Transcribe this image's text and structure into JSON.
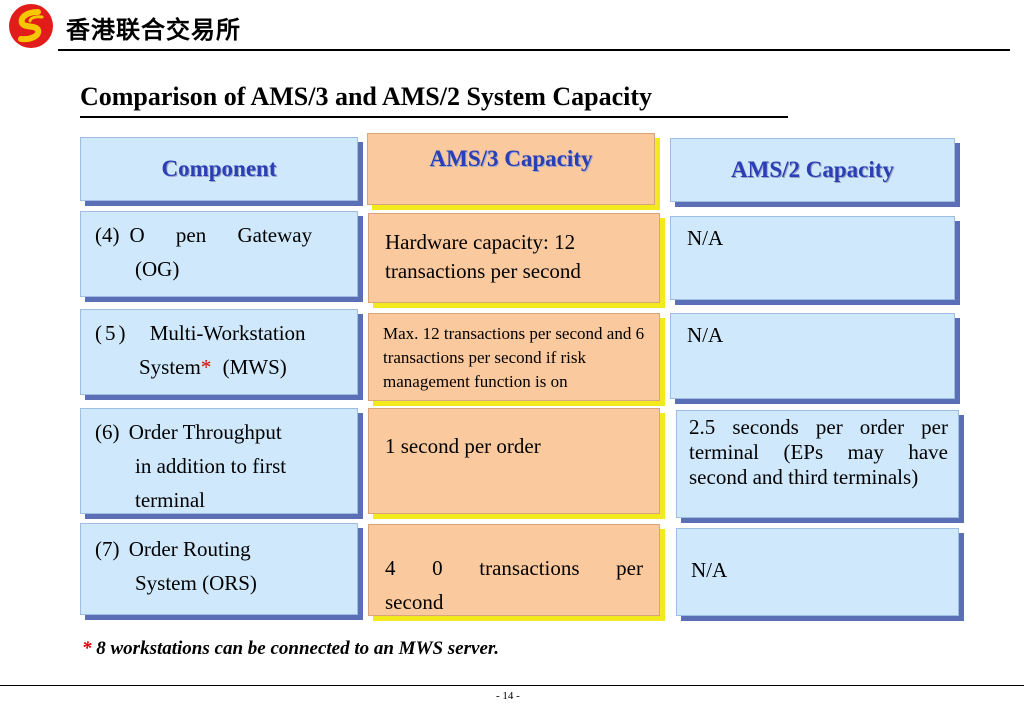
{
  "header": {
    "brand": "香港联合交易所",
    "logo_icon": "hkex-logo-icon"
  },
  "title": "Comparison of AMS/3 and AMS/2 System Capacity",
  "table": {
    "headers": [
      "Component",
      "AMS/3 Capacity",
      "AMS/2 Capacity"
    ],
    "rows": [
      {
        "component_num": "(4)",
        "component_line1": "O pen Gateway",
        "component_line2": "(OG)",
        "ams3": "Hardware capacity: 12 transactions per second",
        "ams2": "N/A"
      },
      {
        "component_num": "(5)",
        "component_line1": "Multi-Workstation",
        "component_line2": "System",
        "component_star": "*",
        "component_line2b": "(MWS)",
        "ams3": "Max. 12 transactions per second and 6 transactions per second if risk management function is on",
        "ams2": "N/A"
      },
      {
        "component_num": "(6)",
        "component_line1": "Order Throughput",
        "component_line2": "in addition to first",
        "component_line3": "terminal",
        "ams3": "1 second per order",
        "ams2": "2.5 seconds per order per terminal (EPs may have second and third terminals)"
      },
      {
        "component_num": "(7)",
        "component_line1": "Order Routing",
        "component_line2": "System (ORS)",
        "ams3": "4 0 transactions per second",
        "ams2": "N/A"
      }
    ]
  },
  "footnote": {
    "star": "*",
    "text": "8 workstations can be connected to an MWS server."
  },
  "page_number": "- 14 -",
  "colors": {
    "blue_cell": "#cfe8fb",
    "orange_cell": "#fbc99e",
    "header_text": "#2b3fb5",
    "blue_shadow": "#5a6fb5",
    "yellow_shadow": "#f2ea1e",
    "star": "#e00000"
  }
}
